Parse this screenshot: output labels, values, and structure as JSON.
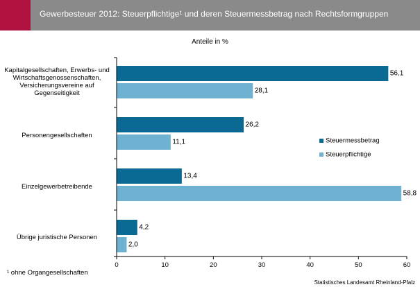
{
  "header": {
    "title": "Gewerbesteuer 2012: Steuerpflichtige¹ und deren Steuermessbetrag nach Rechtsformgruppen"
  },
  "subtitle": "Anteile in %",
  "footnote": "¹ ohne Organgesellschaften",
  "source": "Statistisches Landesamt Rheinland-Pfalz",
  "colors": {
    "header_bg": "#8a8a8a",
    "accent": "#b0123f",
    "steuermessbetrag": "#0b6a93",
    "steuerpflichtige": "#6fb1d1"
  },
  "chart_data": {
    "type": "bar",
    "orientation": "horizontal",
    "categories": [
      "Kapitalgesellschaften, Erwerbs- und Wirtschaftsgenossenschaften, Versicherungsvereine auf Gegenseitigkeit",
      "Personengesellschaften",
      "Einzelgewerbetreibende",
      "Übrige juristische Personen"
    ],
    "series": [
      {
        "name": "Steuermessbetrag",
        "values": [
          56.1,
          26.2,
          13.4,
          4.2
        ],
        "labels": [
          "56,1",
          "26,2",
          "13,4",
          "4,2"
        ]
      },
      {
        "name": "Steuerpflichtige",
        "values": [
          28.1,
          11.1,
          58.8,
          2.0
        ],
        "labels": [
          "28,1",
          "11,1",
          "58,8",
          "2,0"
        ]
      }
    ],
    "xlim": [
      0,
      60
    ],
    "xticks": [
      "0",
      "10",
      "20",
      "30",
      "40",
      "50",
      "60"
    ],
    "legend_placement": "right",
    "grid": false
  }
}
